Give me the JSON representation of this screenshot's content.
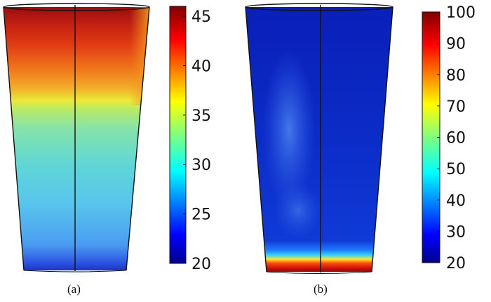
{
  "panels": [
    {
      "id": "a",
      "label": "(a)",
      "colorbar": {
        "min": 20,
        "max": 46,
        "ticks": [
          "20",
          "25",
          "30",
          "35",
          "40",
          "45"
        ]
      }
    },
    {
      "id": "b",
      "label": "(b)",
      "colorbar": {
        "min": 20,
        "max": 100,
        "ticks": [
          "20",
          "30",
          "40",
          "50",
          "60",
          "70",
          "80",
          "90",
          "100"
        ]
      }
    }
  ],
  "colormap": "jet"
}
